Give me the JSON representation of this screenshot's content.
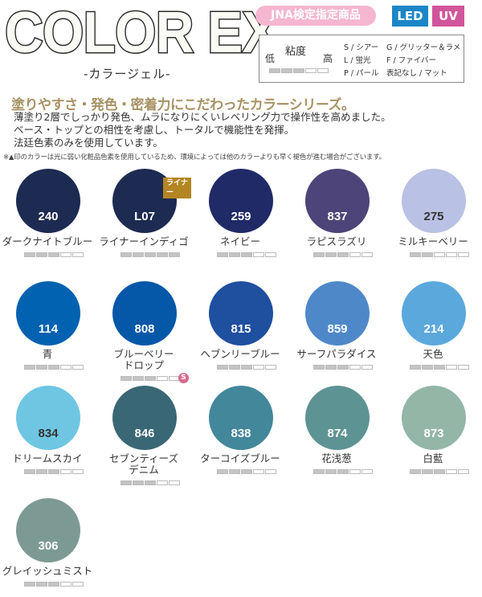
{
  "header": {
    "logo_title": "COLOR EX",
    "logo_subtitle": "-カラージェル-",
    "jna_badge": "JNA検定指定商品",
    "led_badge": "LED",
    "uv_badge": "UV",
    "colors": {
      "jna": "#f5b6cf",
      "led": "#1c86c6",
      "uv": "#d1559a"
    }
  },
  "legend": {
    "low": "低",
    "viscosity": "粘度",
    "high": "高",
    "sample_level": 3,
    "codes_left": [
      "S / シアー",
      "L / 蛍光",
      "P / パール"
    ],
    "codes_right": [
      "G / グリッター＆ラメ",
      "F / ファイバー",
      "表記なし / マット"
    ]
  },
  "tagline": "塗りやすさ・発色・密着力にこだわったカラーシリーズ。",
  "description": [
    "薄塗り2層でしっかり発色、ムラになりにくいレベリング力で操作性を高めました。",
    "ベース・トップとの相性を考慮し、トータルで機能性を発揮。",
    "法廷色素のみを使用しています。"
  ],
  "note": "※▲印のカラーは光に弱い化粧品色素を使用しているため、環境によっては他のカラーよりも早く褪色が進む場合がございます。",
  "viscosity_max": 5,
  "swatches": [
    {
      "code": "240",
      "name": "ダークナイトブルー",
      "color": "#1d2b52",
      "text_color": "#ffffff",
      "viscosity": 3
    },
    {
      "code": "L07",
      "name": "ライナーインディゴ",
      "color": "#1d2b52",
      "text_color": "#ffffff",
      "viscosity": 5,
      "badge": "ライナー"
    },
    {
      "code": "259",
      "name": "ネイビー",
      "color": "#1f2a67",
      "text_color": "#ffffff",
      "viscosity": 3
    },
    {
      "code": "837",
      "name": "ラピスラズリ",
      "color": "#4d4479",
      "text_color": "#ffffff",
      "viscosity": 3
    },
    {
      "code": "275",
      "name": "ミルキーベリー",
      "color": "#b9c1e4",
      "text_color": "#333333",
      "viscosity": 2
    },
    {
      "code": "114",
      "name": "青",
      "color": "#0062b0",
      "text_color": "#ffffff",
      "viscosity": 3
    },
    {
      "code": "808",
      "name": "ブルーベリー\nドロップ",
      "name_lines": [
        "ブルーベリー",
        "ドロップ"
      ],
      "color": "#0557a8",
      "text_color": "#ffffff",
      "viscosity": 3,
      "type_badge": "S"
    },
    {
      "code": "815",
      "name": "ヘブンリーブルー",
      "color": "#1f4f9f",
      "text_color": "#ffffff",
      "viscosity": 3
    },
    {
      "code": "859",
      "name": "サーフパラダイス",
      "color": "#4f88c8",
      "text_color": "#ffffff",
      "viscosity": 3
    },
    {
      "code": "214",
      "name": "天色",
      "color": "#5ba8dc",
      "text_color": "#ffffff",
      "viscosity": 3
    },
    {
      "code": "834",
      "name": "ドリームスカイ",
      "color": "#6ec6e3",
      "text_color": "#333333",
      "viscosity": 3
    },
    {
      "code": "846",
      "name": "セブンティーズ\nデニム",
      "name_lines": [
        "セブンティーズ",
        "デニム"
      ],
      "color": "#396775",
      "text_color": "#ffffff",
      "viscosity": 3
    },
    {
      "code": "838",
      "name": "ターコイズブルー",
      "color": "#43879b",
      "text_color": "#ffffff",
      "viscosity": 3
    },
    {
      "code": "874",
      "name": "花浅葱",
      "color": "#5d9393",
      "text_color": "#ffffff",
      "viscosity": 3
    },
    {
      "code": "873",
      "name": "白藍",
      "color": "#93b6a7",
      "text_color": "#ffffff",
      "viscosity": 3
    },
    {
      "code": "306",
      "name": "グレイッシュミスト",
      "color": "#7c9a93",
      "text_color": "#ffffff",
      "viscosity": 3
    }
  ]
}
